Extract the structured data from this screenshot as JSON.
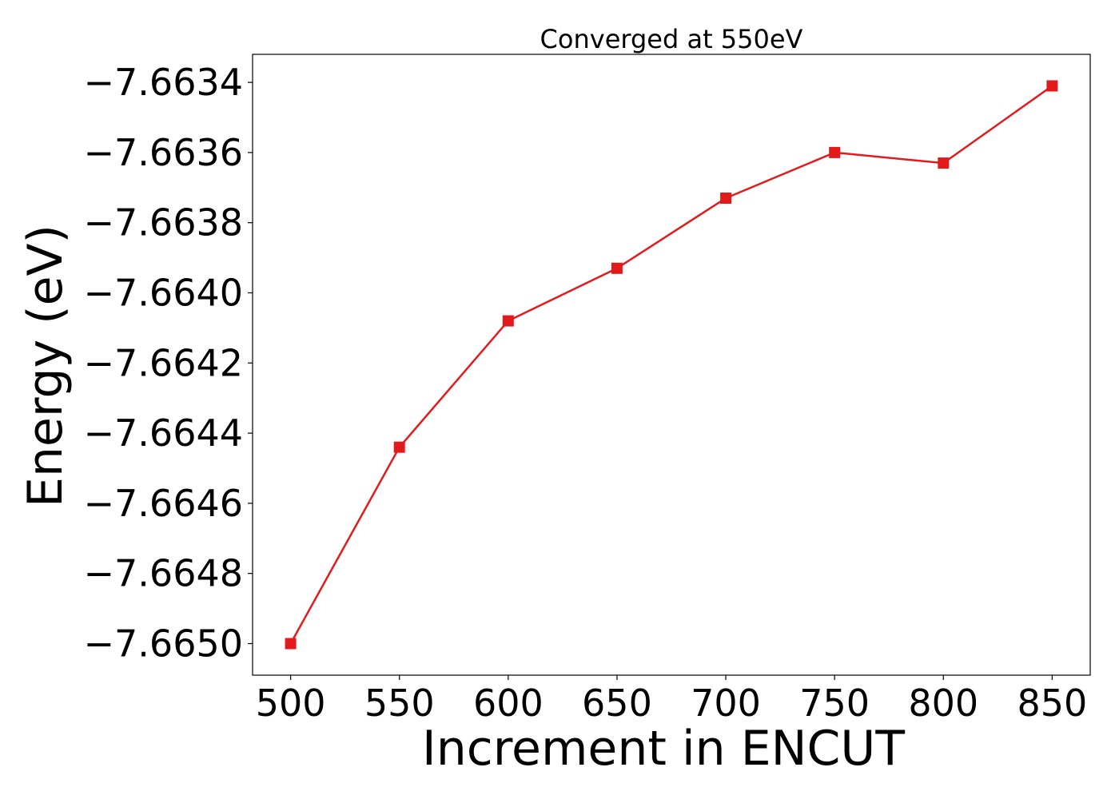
{
  "chart_data": {
    "type": "line",
    "title": "Converged at 550eV",
    "xlabel": "Increment in ENCUT",
    "ylabel": "Energy (eV)",
    "x": [
      500,
      550,
      600,
      650,
      700,
      750,
      800,
      850
    ],
    "xticks": [
      500,
      550,
      600,
      650,
      700,
      750,
      800,
      850
    ],
    "yticks": [
      -7.665,
      -7.6648,
      -7.6646,
      -7.6644,
      -7.6642,
      -7.664,
      -7.6638,
      -7.6636,
      -7.6634
    ],
    "ytick_labels": [
      "−7.6650",
      "−7.6648",
      "−7.6646",
      "−7.6644",
      "−7.6642",
      "−7.6640",
      "−7.6638",
      "−7.6636",
      "−7.6634"
    ],
    "xlim": [
      482.5,
      867.5
    ],
    "ylim": [
      -7.66509,
      -7.66332
    ],
    "grid": false,
    "series": [
      {
        "values": [
          -7.665,
          -7.66444,
          -7.66408,
          -7.66393,
          -7.66373,
          -7.6636,
          -7.66363,
          -7.66341
        ],
        "color": "#e31a1c",
        "marker": "square"
      }
    ]
  }
}
